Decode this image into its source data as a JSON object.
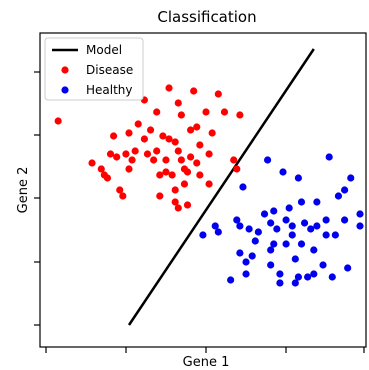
{
  "chart_data": {
    "type": "scatter",
    "title": "Classification",
    "xlabel": "Gene 1",
    "ylabel": "Gene 2",
    "xlim": [
      0,
      100
    ],
    "ylim": [
      0,
      100
    ],
    "grid": false,
    "legend_position": "top-left",
    "legend": [
      {
        "label": "Model",
        "kind": "line",
        "color": "#000000"
      },
      {
        "label": "Disease",
        "kind": "point",
        "color": "#ff0000"
      },
      {
        "label": "Healthy",
        "kind": "point",
        "color": "#0000ee"
      }
    ],
    "line": {
      "name": "Model",
      "color": "#000000",
      "points": [
        [
          25,
          5
        ],
        [
          85,
          97
        ]
      ]
    },
    "series": [
      {
        "name": "Disease",
        "color": "#ff0000",
        "points": [
          [
            2,
            73
          ],
          [
            13,
            59
          ],
          [
            16,
            57
          ],
          [
            17,
            55
          ],
          [
            18,
            54
          ],
          [
            19,
            62
          ],
          [
            20,
            68
          ],
          [
            21,
            61
          ],
          [
            22,
            50
          ],
          [
            23,
            48
          ],
          [
            24,
            62
          ],
          [
            25,
            69
          ],
          [
            25,
            57
          ],
          [
            26,
            60
          ],
          [
            27,
            63
          ],
          [
            28,
            72
          ],
          [
            30,
            80
          ],
          [
            30,
            67
          ],
          [
            31,
            62
          ],
          [
            32,
            70
          ],
          [
            33,
            60
          ],
          [
            34,
            76
          ],
          [
            34,
            63
          ],
          [
            35,
            55
          ],
          [
            35,
            48
          ],
          [
            36,
            68
          ],
          [
            37,
            60
          ],
          [
            37,
            56
          ],
          [
            38,
            84
          ],
          [
            38,
            67
          ],
          [
            39,
            55
          ],
          [
            40,
            66
          ],
          [
            40,
            50
          ],
          [
            40,
            46
          ],
          [
            41,
            79
          ],
          [
            41,
            63
          ],
          [
            41,
            44
          ],
          [
            42,
            75
          ],
          [
            42,
            60
          ],
          [
            43,
            57
          ],
          [
            43,
            52
          ],
          [
            44,
            56
          ],
          [
            44,
            45
          ],
          [
            45,
            70
          ],
          [
            45,
            61
          ],
          [
            46,
            83
          ],
          [
            47,
            71
          ],
          [
            47,
            59
          ],
          [
            48,
            65
          ],
          [
            48,
            55
          ],
          [
            50,
            76
          ],
          [
            51,
            62
          ],
          [
            51,
            52
          ],
          [
            52,
            69
          ],
          [
            54,
            82
          ],
          [
            56,
            76
          ],
          [
            59,
            60
          ],
          [
            60,
            57
          ],
          [
            61,
            75
          ]
        ]
      },
      {
        "name": "Healthy",
        "color": "#0000ee",
        "points": [
          [
            49,
            35
          ],
          [
            53,
            38
          ],
          [
            54,
            36
          ],
          [
            58,
            20
          ],
          [
            60,
            40
          ],
          [
            61,
            38
          ],
          [
            61,
            29
          ],
          [
            62,
            51
          ],
          [
            63,
            22
          ],
          [
            63,
            26
          ],
          [
            64,
            37
          ],
          [
            65,
            28
          ],
          [
            66,
            33
          ],
          [
            67,
            36
          ],
          [
            69,
            42
          ],
          [
            70,
            60
          ],
          [
            71,
            39
          ],
          [
            71,
            30
          ],
          [
            71,
            25
          ],
          [
            72,
            43
          ],
          [
            72,
            32
          ],
          [
            73,
            37
          ],
          [
            74,
            22
          ],
          [
            74,
            19
          ],
          [
            75,
            56
          ],
          [
            76,
            32
          ],
          [
            76,
            40
          ],
          [
            77,
            44
          ],
          [
            78,
            38
          ],
          [
            78,
            35
          ],
          [
            79,
            27
          ],
          [
            79,
            19
          ],
          [
            80,
            21
          ],
          [
            80,
            54
          ],
          [
            81,
            32
          ],
          [
            81,
            46
          ],
          [
            82,
            39
          ],
          [
            83,
            21
          ],
          [
            84,
            37
          ],
          [
            85,
            30
          ],
          [
            85,
            22
          ],
          [
            86,
            46
          ],
          [
            86,
            38
          ],
          [
            88,
            25
          ],
          [
            89,
            40
          ],
          [
            89,
            35
          ],
          [
            90,
            61
          ],
          [
            91,
            21
          ],
          [
            92,
            35
          ],
          [
            93,
            48
          ],
          [
            95,
            50
          ],
          [
            95,
            40
          ],
          [
            96,
            24
          ],
          [
            97,
            54
          ],
          [
            100,
            42
          ],
          [
            100,
            38
          ]
        ]
      }
    ]
  }
}
